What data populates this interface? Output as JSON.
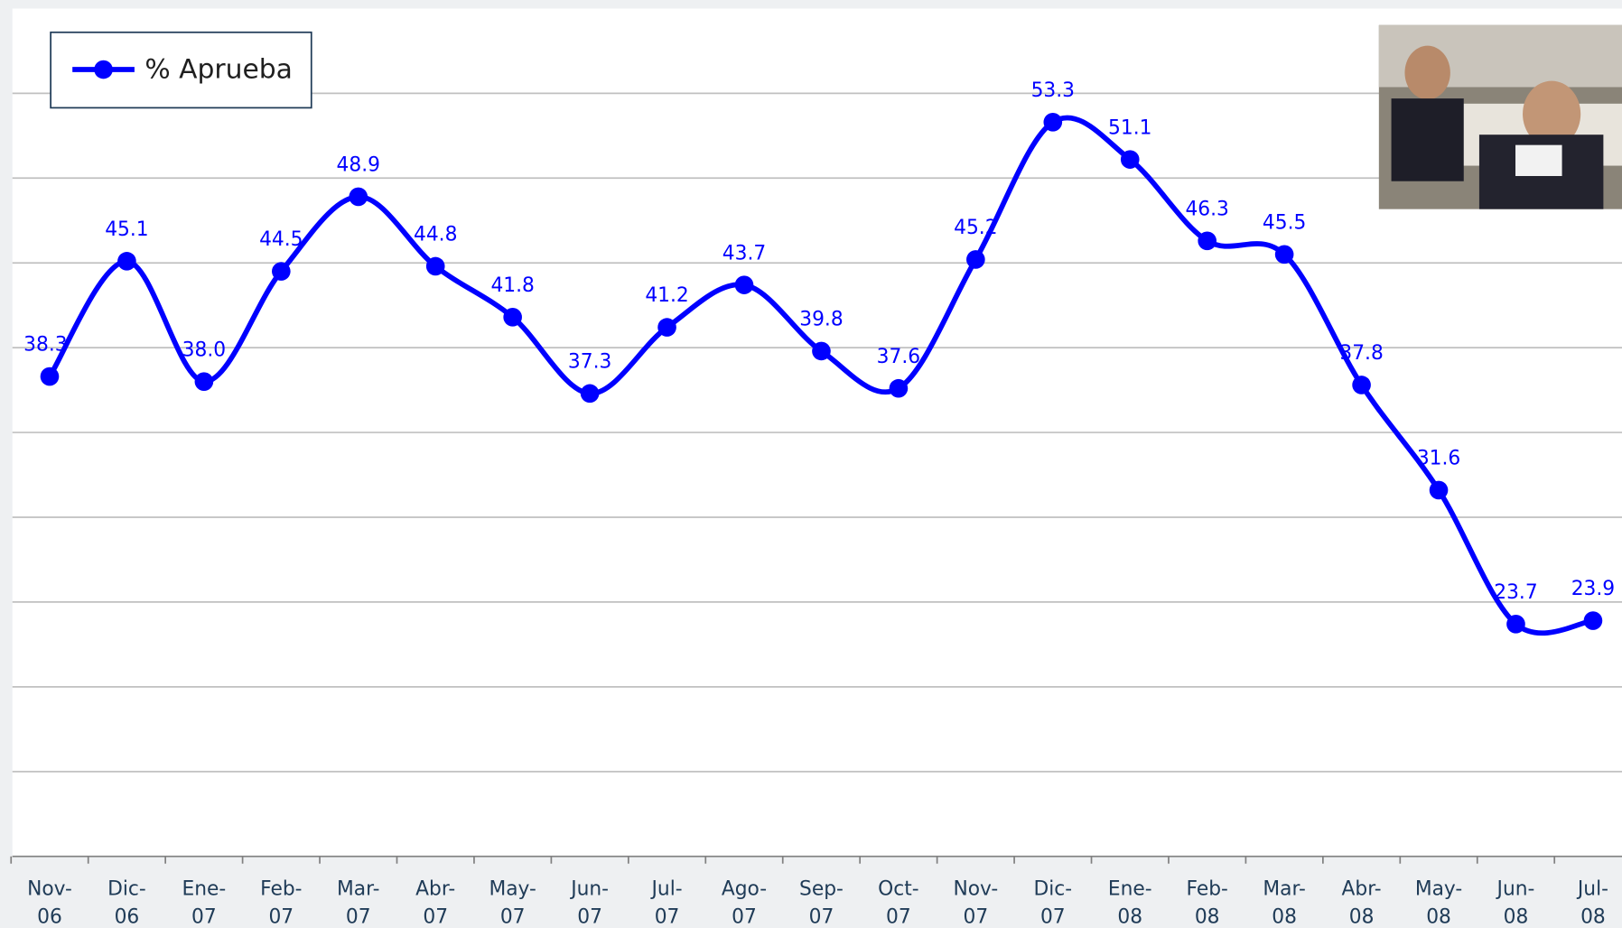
{
  "chart_data": {
    "type": "line",
    "categories": [
      "Nov-06",
      "Dic-06",
      "Ene-07",
      "Feb-07",
      "Mar-07",
      "Abr-07",
      "May-07",
      "Jun-07",
      "Jul-07",
      "Ago-07",
      "Sep-07",
      "Oct-07",
      "Nov-07",
      "Dic-07",
      "Ene-08",
      "Feb-08",
      "Mar-08",
      "Abr-08",
      "May-08",
      "Jun-08",
      "Jul-08"
    ],
    "series": [
      {
        "name": "% Aprueba",
        "color": "#0000ff",
        "values": [
          38.3,
          45.1,
          38.0,
          44.5,
          48.9,
          44.8,
          41.8,
          37.3,
          41.2,
          43.7,
          39.8,
          37.6,
          45.2,
          53.3,
          51.1,
          46.3,
          45.5,
          37.8,
          31.6,
          23.7,
          23.9
        ],
        "value_labels": [
          "38.3",
          "45.1",
          "38.0",
          "44.5",
          "48.9",
          "44.8",
          "41.8",
          "37.3",
          "41.2",
          "43.7",
          "39.8",
          "37.6",
          "45.2",
          "53.3",
          "51.1",
          "46.3",
          "45.5",
          "37.8",
          "31.6",
          "23.7",
          "23.9"
        ]
      }
    ],
    "ylim": [
      10,
      60
    ],
    "yticks": [
      10,
      15,
      20,
      25,
      30,
      35,
      40,
      45,
      50,
      55
    ],
    "grid": true,
    "legend": "top-left"
  }
}
